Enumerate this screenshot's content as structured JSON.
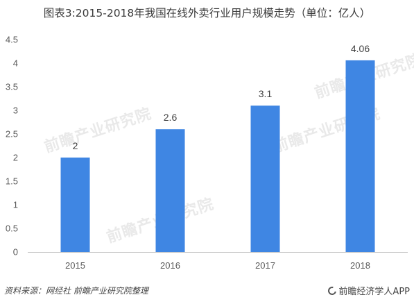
{
  "title": "图表3:2015-2018年我国在线外卖行业用户规模走势（单位：亿人）",
  "source_text": "资料来源：网经社  前瞻产业研究院整理",
  "brand_text": "前瞻经济学人APP",
  "watermark_text": "前瞻产业研究院",
  "colors": {
    "bar": "#3f86e3",
    "grid": "#d9d9d9",
    "axis": "#bfbfbf"
  },
  "chart_data": {
    "type": "bar",
    "categories": [
      "2015",
      "2016",
      "2017",
      "2018"
    ],
    "values": [
      2,
      2.6,
      3.1,
      4.06
    ],
    "value_labels": [
      "2",
      "2.6",
      "3.1",
      "4.06"
    ],
    "ylim": [
      0,
      4.5
    ],
    "yticks": [
      "0",
      "0.5",
      "1",
      "1.5",
      "2",
      "2.5",
      "3",
      "3.5",
      "4",
      "4.5"
    ],
    "grid": false
  }
}
